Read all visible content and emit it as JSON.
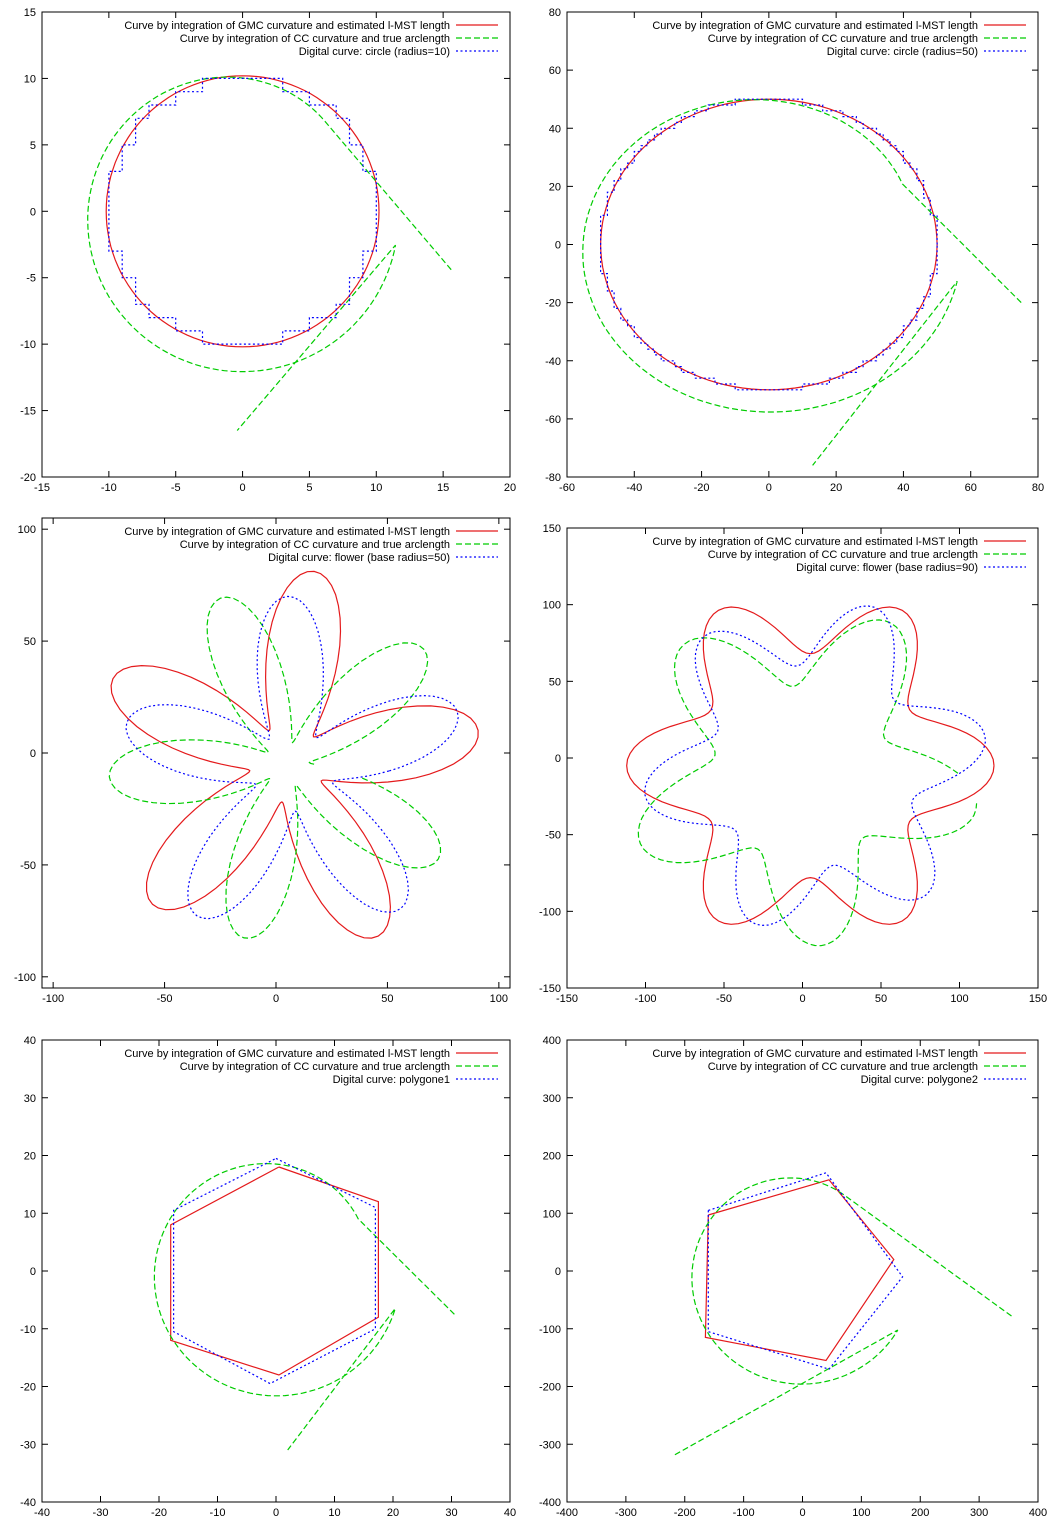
{
  "chart_data": [
    {
      "type": "line",
      "legend": "top-right",
      "grid": false,
      "xlim": [
        -15,
        20
      ],
      "ylim": [
        -20,
        15
      ],
      "xticks": [
        -15,
        -10,
        -5,
        0,
        5,
        10,
        15,
        20
      ],
      "yticks": [
        -20,
        -15,
        -10,
        -5,
        0,
        5,
        10,
        15
      ],
      "series": [
        {
          "name": "Curve by integration of GMC curvature and estimated l-MST length",
          "color": "#e41a1c",
          "dash": "solid",
          "shape": "circle",
          "params": {
            "cx": 0,
            "cy": 0,
            "r": 10.2
          }
        },
        {
          "name": "Curve by integration of CC curvature and true arclength",
          "color": "#00cc00",
          "dash": "dashed",
          "shape": "spiral",
          "params": {
            "start": [
              15.6,
              -4.4
            ],
            "end": [
              -0.4,
              -16.5
            ],
            "cx": 0,
            "cy": 0,
            "r0": 10.4,
            "k": 0.13,
            "a0": 45,
            "a1": 350
          }
        },
        {
          "name": "Digital curve: circle (radius=10)",
          "color": "#0000ff",
          "dash": "dotted",
          "shape": "pixel-circle",
          "params": {
            "r": 10
          }
        }
      ]
    },
    {
      "type": "line",
      "legend": "top-right",
      "grid": false,
      "xlim": [
        -60,
        80
      ],
      "ylim": [
        -80,
        80
      ],
      "xticks": [
        -60,
        -40,
        -20,
        0,
        20,
        40,
        60,
        80
      ],
      "yticks": [
        -80,
        -60,
        -40,
        -20,
        0,
        20,
        40,
        60,
        80
      ],
      "series": [
        {
          "name": "Curve by integration of GMC curvature and estimated l-MST length",
          "color": "#e41a1c",
          "dash": "solid",
          "shape": "circle",
          "params": {
            "cx": 0,
            "cy": 0,
            "r": 50
          }
        },
        {
          "name": "Curve by integration of CC curvature and true arclength",
          "color": "#00cc00",
          "dash": "dashed",
          "shape": "spiral",
          "params": {
            "start": [
              75,
              -20
            ],
            "end": [
              13,
              -76
            ],
            "cx": 0,
            "cy": 0,
            "r0": 51,
            "k": 0.09,
            "a0": 25,
            "a1": 350
          }
        },
        {
          "name": "Digital curve: circle (radius=50)",
          "color": "#0000ff",
          "dash": "dotted",
          "shape": "pixel-circle",
          "params": {
            "r": 50
          }
        }
      ]
    },
    {
      "type": "line",
      "legend": "top-right",
      "grid": false,
      "xlim": [
        -105,
        105
      ],
      "ylim": [
        -105,
        105
      ],
      "xticks": [
        -100,
        -50,
        0,
        50,
        100
      ],
      "yticks": [
        -100,
        -50,
        0,
        50,
        100
      ],
      "series": [
        {
          "name": "Curve by integration of GMC curvature and estimated l-MST length",
          "color": "#e41a1c",
          "dash": "solid",
          "shape": "flower",
          "params": {
            "cx": 5,
            "cy": -5,
            "base": 52,
            "amp": 35,
            "petals": 5,
            "phase": 10
          }
        },
        {
          "name": "Curve by integration of CC curvature and true arclength",
          "color": "#00cc00",
          "dash": "dashed",
          "shape": "flower-open",
          "params": {
            "cx": 5,
            "cy": -5,
            "base": 45,
            "amp": 35,
            "petals": 5,
            "phase": 40
          }
        },
        {
          "name": "Digital curve: flower (base radius=50)",
          "color": "#0000ff",
          "dash": "dotted",
          "shape": "flower",
          "params": {
            "cx": 8,
            "cy": -8,
            "base": 48,
            "amp": 30,
            "petals": 5,
            "phase": 20
          }
        }
      ]
    },
    {
      "type": "line",
      "legend": "top-right",
      "grid": false,
      "xlim": [
        -150,
        150
      ],
      "ylim": [
        -150,
        150
      ],
      "xticks": [
        -150,
        -100,
        -50,
        0,
        50,
        100,
        150
      ],
      "yticks": [
        -150,
        -100,
        -50,
        0,
        50,
        100,
        150
      ],
      "series": [
        {
          "name": "Curve by integration of GMC curvature and estimated l-MST length",
          "color": "#e41a1c",
          "dash": "solid",
          "shape": "flower",
          "params": {
            "cx": 5,
            "cy": -5,
            "base": 95,
            "amp": 22,
            "petals": 6,
            "phase": 0
          }
        },
        {
          "name": "Curve by integration of CC curvature and true arclength",
          "color": "#00cc00",
          "dash": "dashed",
          "shape": "flower-open",
          "params": {
            "cx": 0,
            "cy": -10,
            "base": 85,
            "amp": 28,
            "petals": 5,
            "phase": 60
          }
        },
        {
          "name": "Digital curve: flower (base radius=90)",
          "color": "#0000ff",
          "dash": "dotted",
          "shape": "flower",
          "params": {
            "cx": 8,
            "cy": -5,
            "base": 88,
            "amp": 22,
            "petals": 6,
            "phase": 10
          }
        }
      ]
    },
    {
      "type": "line",
      "legend": "top-right",
      "grid": false,
      "xlim": [
        -40,
        40
      ],
      "ylim": [
        -40,
        40
      ],
      "xticks": [
        -40,
        -30,
        -20,
        -10,
        0,
        10,
        20,
        30,
        40
      ],
      "yticks": [
        -40,
        -30,
        -20,
        -10,
        0,
        10,
        20,
        30,
        40
      ],
      "series": [
        {
          "name": "Curve by integration of GMC curvature and estimated l-MST length",
          "color": "#e41a1c",
          "dash": "solid",
          "shape": "polyline",
          "params": {
            "points": [
              [
                0.5,
                18
              ],
              [
                17.5,
                12
              ],
              [
                17.5,
                -8
              ],
              [
                0.5,
                -18
              ],
              [
                -18,
                -12
              ],
              [
                -18,
                8
              ],
              [
                0.5,
                18
              ]
            ]
          }
        },
        {
          "name": "Curve by integration of CC curvature and true arclength",
          "color": "#00cc00",
          "dash": "dashed",
          "shape": "spiral",
          "params": {
            "start": [
              30.5,
              -7.5
            ],
            "end": [
              2,
              -31
            ],
            "cx": 0,
            "cy": 0,
            "r0": 19,
            "k": 0.1,
            "a0": 30,
            "a1": 345
          }
        },
        {
          "name": "Digital curve: polygone1",
          "color": "#0000ff",
          "dash": "dotted",
          "shape": "polyline",
          "params": {
            "points": [
              [
                0,
                19.5
              ],
              [
                17,
                11
              ],
              [
                17,
                -10
              ],
              [
                -1,
                -19.5
              ],
              [
                -17.5,
                -10.5
              ],
              [
                -17.5,
                10.5
              ],
              [
                0,
                19.5
              ]
            ]
          }
        }
      ]
    },
    {
      "type": "line",
      "legend": "top-right",
      "grid": false,
      "xlim": [
        -400,
        400
      ],
      "ylim": [
        -400,
        400
      ],
      "xticks": [
        -400,
        -300,
        -200,
        -100,
        0,
        100,
        200,
        300,
        400
      ],
      "yticks": [
        -400,
        -300,
        -200,
        -100,
        0,
        100,
        200,
        300,
        400
      ],
      "series": [
        {
          "name": "Curve by integration of GMC curvature and estimated l-MST length",
          "color": "#e41a1c",
          "dash": "solid",
          "shape": "polyline",
          "params": {
            "points": [
              [
                -160,
                97
              ],
              [
                45,
                158
              ],
              [
                155,
                20
              ],
              [
                40,
                -155
              ],
              [
                -165,
                -115
              ],
              [
                -160,
                97
              ]
            ]
          }
        },
        {
          "name": "Curve by integration of CC curvature and true arclength",
          "color": "#00cc00",
          "dash": "dashed",
          "shape": "spiral",
          "params": {
            "start": [
              355,
              -78
            ],
            "end": [
              -220,
              -320
            ],
            "cx": 0,
            "cy": 0,
            "r0": 170,
            "k": 0.12,
            "a0": 60,
            "a1": 330
          }
        },
        {
          "name": "Digital curve: polygone2",
          "color": "#0000ff",
          "dash": "dotted",
          "shape": "polyline",
          "params": {
            "points": [
              [
                -160,
                105
              ],
              [
                40,
                170
              ],
              [
                170,
                -10
              ],
              [
                45,
                -170
              ],
              [
                -160,
                -105
              ],
              [
                -160,
                105
              ]
            ]
          }
        }
      ]
    }
  ]
}
